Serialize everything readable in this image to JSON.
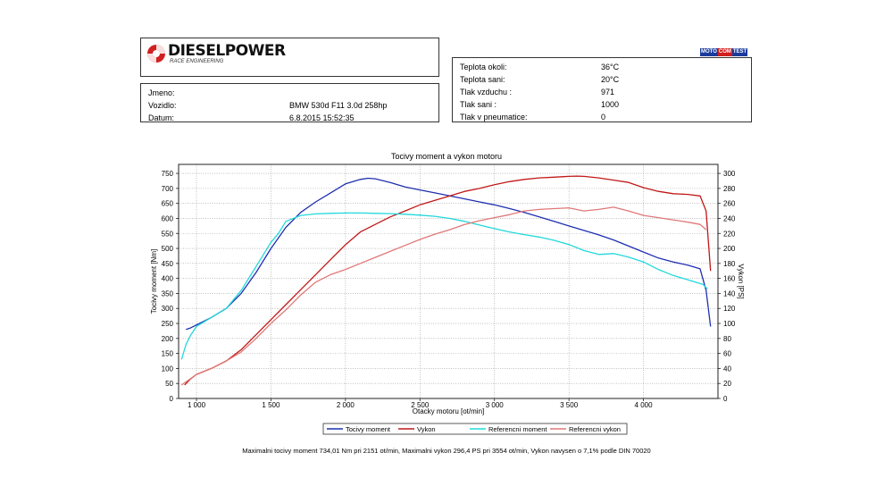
{
  "header": {
    "brand": "DIESELPOWER",
    "brand_sub": "RACE ENGINEERING",
    "mototest": {
      "a": "MOTO",
      "b": "COM",
      "c": "TEST"
    }
  },
  "vehicle": {
    "name_label": "Jmeno:",
    "name_value": "",
    "vehicle_label": "Vozidlo:",
    "vehicle_value": "BMW 530d F11 3.0d 258hp",
    "date_label": "Datum:",
    "date_value": "6.8.2015 15:52:35"
  },
  "conditions": [
    {
      "label": "Teplota okoli:",
      "value": "36°C"
    },
    {
      "label": "Teplota sani:",
      "value": "20°C"
    },
    {
      "label": "Tlak vzduchu :",
      "value": "971"
    },
    {
      "label": "Tlak sani :",
      "value": "1000"
    },
    {
      "label": "Tlak v pneumatice:",
      "value": "0"
    }
  ],
  "summary": "Maximalni tocivy moment 734,01 Nm pri 2151 ot/min,  Maximalni vykon 296,4 PS pri 3554 ot/min,  Vykon navysen o 7,1% podle DIN 70020",
  "chart_data": {
    "type": "line",
    "title": "Tocivy moment a vykon motoru",
    "xlabel": "Otacky motoru [ot/min]",
    "ylabel": "Tocivy moment [Nm]",
    "y2label": "Vykon [PS]",
    "xlim": [
      880,
      4500
    ],
    "ylim": [
      0,
      780
    ],
    "y2lim": [
      0,
      312
    ],
    "x_ticks": [
      1000,
      1500,
      2000,
      2500,
      3000,
      3500,
      4000
    ],
    "x_tick_labels": [
      "1 000",
      "1 500",
      "2 000",
      "2 500",
      "3 000",
      "3 500",
      "4 000"
    ],
    "y_ticks": [
      0,
      50,
      100,
      150,
      200,
      250,
      300,
      350,
      400,
      450,
      500,
      550,
      600,
      650,
      700,
      750
    ],
    "y2_ticks": [
      0,
      20,
      40,
      60,
      80,
      100,
      120,
      140,
      160,
      180,
      200,
      220,
      240,
      260,
      280,
      300
    ],
    "grid": true,
    "legend_position": "bottom",
    "series": [
      {
        "name": "Tocivy moment",
        "axis": "left",
        "color": "#1f2fb0",
        "x": [
          930,
          960,
          1000,
          1100,
          1200,
          1300,
          1400,
          1500,
          1600,
          1700,
          1800,
          1900,
          2000,
          2100,
          2151,
          2200,
          2300,
          2400,
          2500,
          2600,
          2700,
          2800,
          2900,
          3000,
          3100,
          3200,
          3300,
          3400,
          3500,
          3600,
          3700,
          3800,
          3900,
          4000,
          4100,
          4200,
          4300,
          4380,
          4420,
          4450
        ],
        "y": [
          230,
          235,
          245,
          270,
          300,
          350,
          420,
          500,
          570,
          620,
          655,
          685,
          715,
          730,
          734,
          732,
          720,
          705,
          695,
          685,
          675,
          665,
          655,
          645,
          633,
          620,
          605,
          590,
          575,
          560,
          545,
          528,
          508,
          488,
          468,
          455,
          444,
          432,
          360,
          240
        ]
      },
      {
        "name": "Vykon",
        "axis": "right",
        "color": "#c01818",
        "x": [
          920,
          960,
          1000,
          1100,
          1200,
          1300,
          1400,
          1500,
          1600,
          1700,
          1800,
          1900,
          2000,
          2100,
          2200,
          2300,
          2400,
          2500,
          2600,
          2700,
          2800,
          2900,
          3000,
          3100,
          3200,
          3300,
          3400,
          3500,
          3554,
          3600,
          3700,
          3800,
          3900,
          4000,
          4100,
          4200,
          4300,
          4380,
          4420,
          4450
        ],
        "y": [
          18,
          26,
          32,
          40,
          50,
          65,
          85,
          105,
          125,
          145,
          165,
          185,
          205,
          222,
          232,
          242,
          250,
          258,
          264,
          270,
          276,
          280,
          285,
          289,
          292,
          294,
          295,
          296,
          296.4,
          296,
          294,
          291,
          288,
          281,
          276,
          273,
          272,
          270,
          250,
          170
        ]
      },
      {
        "name": "Referencni moment",
        "axis": "left",
        "color": "#22d8dc",
        "x": [
          900,
          930,
          960,
          1000,
          1100,
          1200,
          1300,
          1400,
          1500,
          1550,
          1600,
          1700,
          1800,
          1900,
          2000,
          2100,
          2200,
          2300,
          2400,
          2500,
          2600,
          2700,
          2800,
          2900,
          3000,
          3100,
          3200,
          3300,
          3400,
          3500,
          3600,
          3700,
          3800,
          3900,
          4000,
          4100,
          4200,
          4300,
          4400,
          4430
        ],
        "y": [
          130,
          180,
          210,
          240,
          270,
          300,
          360,
          440,
          520,
          550,
          590,
          610,
          615,
          617,
          618,
          618,
          617,
          616,
          614,
          611,
          607,
          600,
          590,
          578,
          566,
          555,
          546,
          538,
          527,
          513,
          493,
          480,
          483,
          471,
          455,
          430,
          410,
          395,
          380,
          365
        ]
      },
      {
        "name": "Referencni vykon",
        "axis": "right",
        "color": "#e07878",
        "x": [
          900,
          950,
          1000,
          1100,
          1200,
          1300,
          1400,
          1500,
          1600,
          1700,
          1800,
          1900,
          2000,
          2100,
          2200,
          2300,
          2400,
          2500,
          2600,
          2700,
          2800,
          2900,
          3000,
          3100,
          3200,
          3300,
          3400,
          3500,
          3550,
          3600,
          3700,
          3800,
          3900,
          4000,
          4100,
          4200,
          4300,
          4380,
          4420
        ],
        "y": [
          18,
          25,
          32,
          40,
          50,
          62,
          80,
          100,
          118,
          138,
          155,
          165,
          172,
          180,
          188,
          196,
          204,
          212,
          219,
          225,
          232,
          237,
          241,
          245,
          250,
          252,
          253,
          254,
          252,
          250,
          252,
          255,
          250,
          244,
          241,
          238,
          235,
          232,
          225
        ]
      }
    ]
  }
}
